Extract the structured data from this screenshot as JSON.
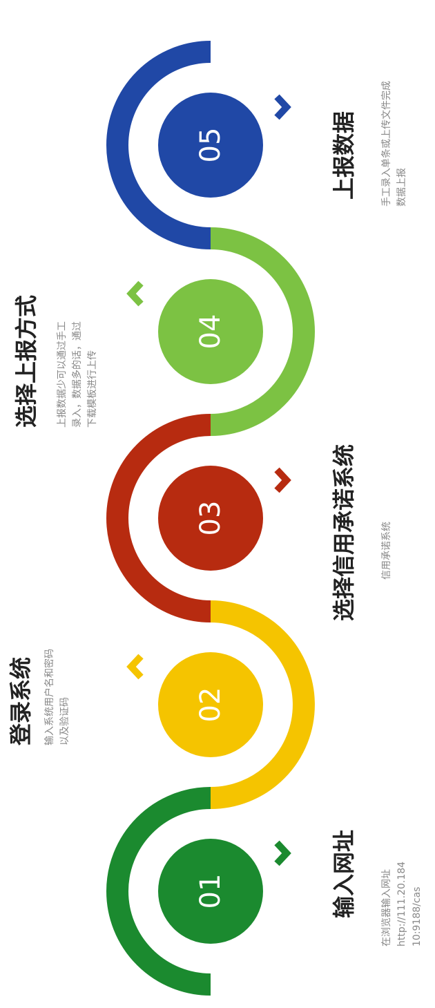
{
  "steps": [
    {
      "number": "01",
      "color": "#1b8a2f",
      "title": "输入网址",
      "description": [
        "在浏览器输入网址",
        "http://111.20.184",
        "10:9188/cas"
      ]
    },
    {
      "number": "02",
      "color": "#f5c400",
      "title": "登录系统",
      "description": [
        "输入系统用户名和密码",
        "以及验证码"
      ]
    },
    {
      "number": "03",
      "color": "#b72b10",
      "title": "选择信用承诺系统",
      "description": [
        "信用承诺系统"
      ]
    },
    {
      "number": "04",
      "color": "#7cc243",
      "title": "选择上报方式",
      "description": [
        "上报数据少可以通过手工",
        "录入，数据多的话，通过",
        "下载模板进行上传"
      ]
    },
    {
      "number": "05",
      "color": "#2048a6",
      "title": "上报数据",
      "description": [
        "手工录入单条或上传文件完成",
        "数据上报"
      ]
    }
  ]
}
